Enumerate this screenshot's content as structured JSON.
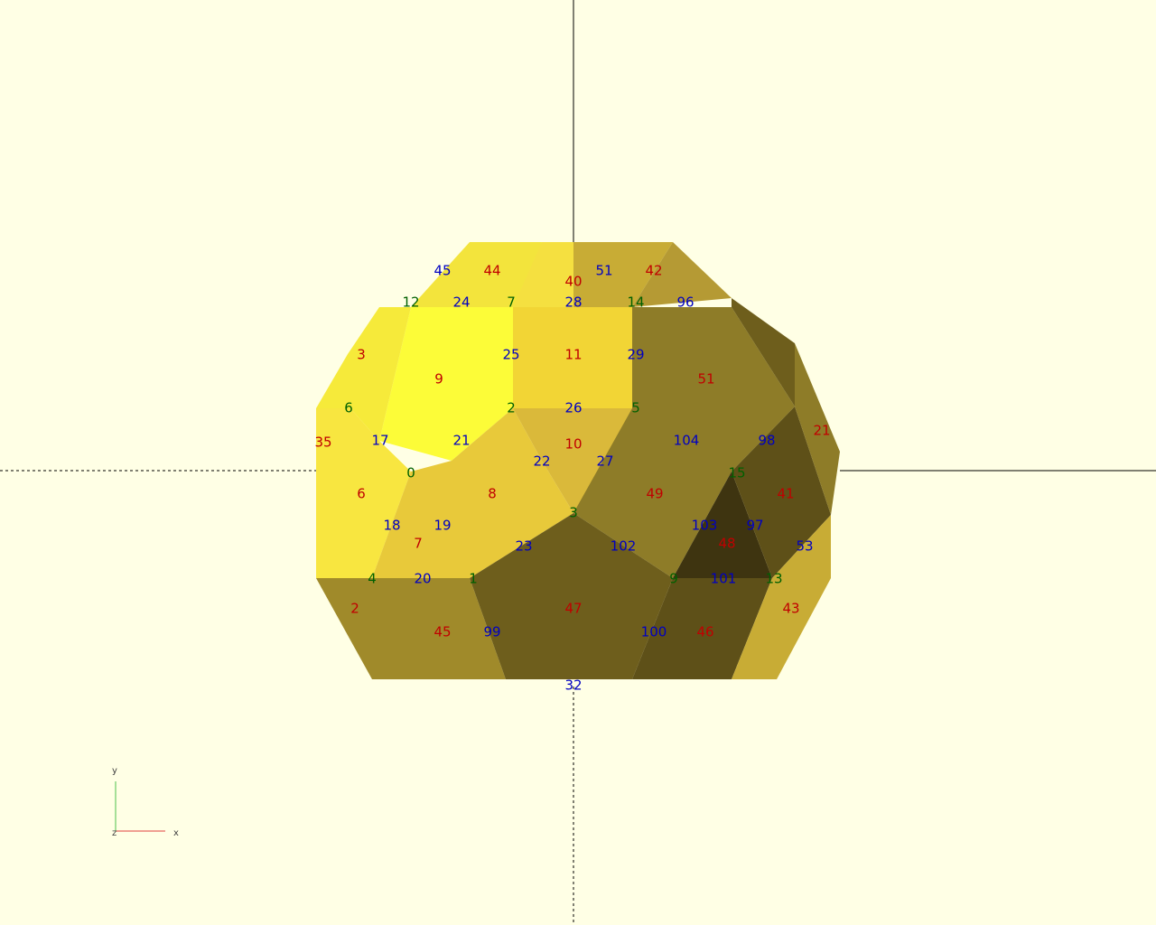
{
  "labels": {
    "faces": [
      "9",
      "11",
      "10",
      "8",
      "6",
      "7",
      "47",
      "49",
      "45",
      "46",
      "51",
      "48",
      "41",
      "3",
      "2",
      "44",
      "42",
      "40",
      "43",
      "21",
      "35"
    ],
    "edges": [
      "28",
      "26",
      "25",
      "29",
      "21",
      "22",
      "27",
      "104",
      "17",
      "18",
      "19",
      "23",
      "102",
      "103",
      "97",
      "20",
      "99",
      "100",
      "101",
      "96",
      "98",
      "24",
      "45",
      "51",
      "53",
      "32"
    ],
    "vertices": [
      "2",
      "5",
      "0",
      "3",
      "1",
      "4",
      "9",
      "15",
      "13",
      "7",
      "14",
      "6",
      "12"
    ]
  },
  "axes": {
    "x": "x",
    "y": "y",
    "z": "z"
  },
  "colors": {
    "background": "#FFFFE5",
    "face_labels": "#C00000",
    "edge_labels": "#0000C0",
    "vertex_labels": "#006000"
  }
}
